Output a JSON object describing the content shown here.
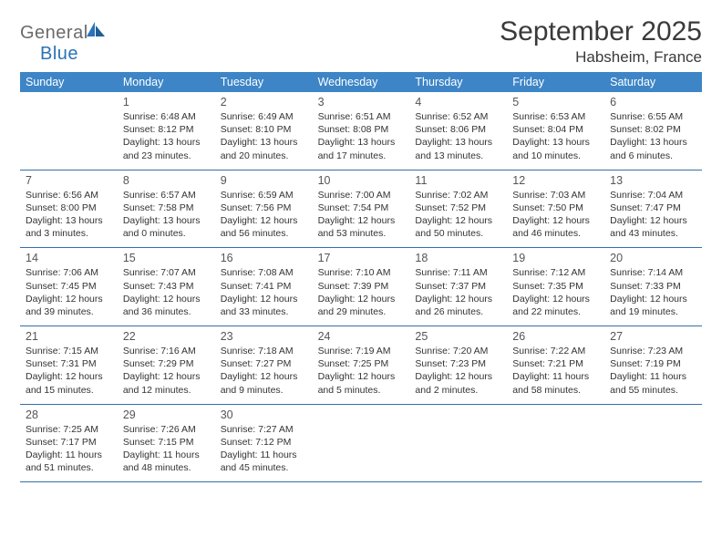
{
  "logo": {
    "text1": "General",
    "text2": "Blue"
  },
  "title": "September 2025",
  "location": "Habsheim, France",
  "colors": {
    "header_bg": "#3d85c6",
    "header_text": "#ffffff",
    "rule": "#356fa8",
    "logo_gray": "#6a6a6a",
    "logo_blue": "#2a73b8",
    "body_text": "#333333",
    "daynum": "#555555"
  },
  "weekdays": [
    "Sunday",
    "Monday",
    "Tuesday",
    "Wednesday",
    "Thursday",
    "Friday",
    "Saturday"
  ],
  "weeks": [
    [
      {
        "num": "",
        "lines": []
      },
      {
        "num": "1",
        "lines": [
          "Sunrise: 6:48 AM",
          "Sunset: 8:12 PM",
          "Daylight: 13 hours",
          "and 23 minutes."
        ]
      },
      {
        "num": "2",
        "lines": [
          "Sunrise: 6:49 AM",
          "Sunset: 8:10 PM",
          "Daylight: 13 hours",
          "and 20 minutes."
        ]
      },
      {
        "num": "3",
        "lines": [
          "Sunrise: 6:51 AM",
          "Sunset: 8:08 PM",
          "Daylight: 13 hours",
          "and 17 minutes."
        ]
      },
      {
        "num": "4",
        "lines": [
          "Sunrise: 6:52 AM",
          "Sunset: 8:06 PM",
          "Daylight: 13 hours",
          "and 13 minutes."
        ]
      },
      {
        "num": "5",
        "lines": [
          "Sunrise: 6:53 AM",
          "Sunset: 8:04 PM",
          "Daylight: 13 hours",
          "and 10 minutes."
        ]
      },
      {
        "num": "6",
        "lines": [
          "Sunrise: 6:55 AM",
          "Sunset: 8:02 PM",
          "Daylight: 13 hours",
          "and 6 minutes."
        ]
      }
    ],
    [
      {
        "num": "7",
        "lines": [
          "Sunrise: 6:56 AM",
          "Sunset: 8:00 PM",
          "Daylight: 13 hours",
          "and 3 minutes."
        ]
      },
      {
        "num": "8",
        "lines": [
          "Sunrise: 6:57 AM",
          "Sunset: 7:58 PM",
          "Daylight: 13 hours",
          "and 0 minutes."
        ]
      },
      {
        "num": "9",
        "lines": [
          "Sunrise: 6:59 AM",
          "Sunset: 7:56 PM",
          "Daylight: 12 hours",
          "and 56 minutes."
        ]
      },
      {
        "num": "10",
        "lines": [
          "Sunrise: 7:00 AM",
          "Sunset: 7:54 PM",
          "Daylight: 12 hours",
          "and 53 minutes."
        ]
      },
      {
        "num": "11",
        "lines": [
          "Sunrise: 7:02 AM",
          "Sunset: 7:52 PM",
          "Daylight: 12 hours",
          "and 50 minutes."
        ]
      },
      {
        "num": "12",
        "lines": [
          "Sunrise: 7:03 AM",
          "Sunset: 7:50 PM",
          "Daylight: 12 hours",
          "and 46 minutes."
        ]
      },
      {
        "num": "13",
        "lines": [
          "Sunrise: 7:04 AM",
          "Sunset: 7:47 PM",
          "Daylight: 12 hours",
          "and 43 minutes."
        ]
      }
    ],
    [
      {
        "num": "14",
        "lines": [
          "Sunrise: 7:06 AM",
          "Sunset: 7:45 PM",
          "Daylight: 12 hours",
          "and 39 minutes."
        ]
      },
      {
        "num": "15",
        "lines": [
          "Sunrise: 7:07 AM",
          "Sunset: 7:43 PM",
          "Daylight: 12 hours",
          "and 36 minutes."
        ]
      },
      {
        "num": "16",
        "lines": [
          "Sunrise: 7:08 AM",
          "Sunset: 7:41 PM",
          "Daylight: 12 hours",
          "and 33 minutes."
        ]
      },
      {
        "num": "17",
        "lines": [
          "Sunrise: 7:10 AM",
          "Sunset: 7:39 PM",
          "Daylight: 12 hours",
          "and 29 minutes."
        ]
      },
      {
        "num": "18",
        "lines": [
          "Sunrise: 7:11 AM",
          "Sunset: 7:37 PM",
          "Daylight: 12 hours",
          "and 26 minutes."
        ]
      },
      {
        "num": "19",
        "lines": [
          "Sunrise: 7:12 AM",
          "Sunset: 7:35 PM",
          "Daylight: 12 hours",
          "and 22 minutes."
        ]
      },
      {
        "num": "20",
        "lines": [
          "Sunrise: 7:14 AM",
          "Sunset: 7:33 PM",
          "Daylight: 12 hours",
          "and 19 minutes."
        ]
      }
    ],
    [
      {
        "num": "21",
        "lines": [
          "Sunrise: 7:15 AM",
          "Sunset: 7:31 PM",
          "Daylight: 12 hours",
          "and 15 minutes."
        ]
      },
      {
        "num": "22",
        "lines": [
          "Sunrise: 7:16 AM",
          "Sunset: 7:29 PM",
          "Daylight: 12 hours",
          "and 12 minutes."
        ]
      },
      {
        "num": "23",
        "lines": [
          "Sunrise: 7:18 AM",
          "Sunset: 7:27 PM",
          "Daylight: 12 hours",
          "and 9 minutes."
        ]
      },
      {
        "num": "24",
        "lines": [
          "Sunrise: 7:19 AM",
          "Sunset: 7:25 PM",
          "Daylight: 12 hours",
          "and 5 minutes."
        ]
      },
      {
        "num": "25",
        "lines": [
          "Sunrise: 7:20 AM",
          "Sunset: 7:23 PM",
          "Daylight: 12 hours",
          "and 2 minutes."
        ]
      },
      {
        "num": "26",
        "lines": [
          "Sunrise: 7:22 AM",
          "Sunset: 7:21 PM",
          "Daylight: 11 hours",
          "and 58 minutes."
        ]
      },
      {
        "num": "27",
        "lines": [
          "Sunrise: 7:23 AM",
          "Sunset: 7:19 PM",
          "Daylight: 11 hours",
          "and 55 minutes."
        ]
      }
    ],
    [
      {
        "num": "28",
        "lines": [
          "Sunrise: 7:25 AM",
          "Sunset: 7:17 PM",
          "Daylight: 11 hours",
          "and 51 minutes."
        ]
      },
      {
        "num": "29",
        "lines": [
          "Sunrise: 7:26 AM",
          "Sunset: 7:15 PM",
          "Daylight: 11 hours",
          "and 48 minutes."
        ]
      },
      {
        "num": "30",
        "lines": [
          "Sunrise: 7:27 AM",
          "Sunset: 7:12 PM",
          "Daylight: 11 hours",
          "and 45 minutes."
        ]
      },
      {
        "num": "",
        "lines": []
      },
      {
        "num": "",
        "lines": []
      },
      {
        "num": "",
        "lines": []
      },
      {
        "num": "",
        "lines": []
      }
    ]
  ]
}
